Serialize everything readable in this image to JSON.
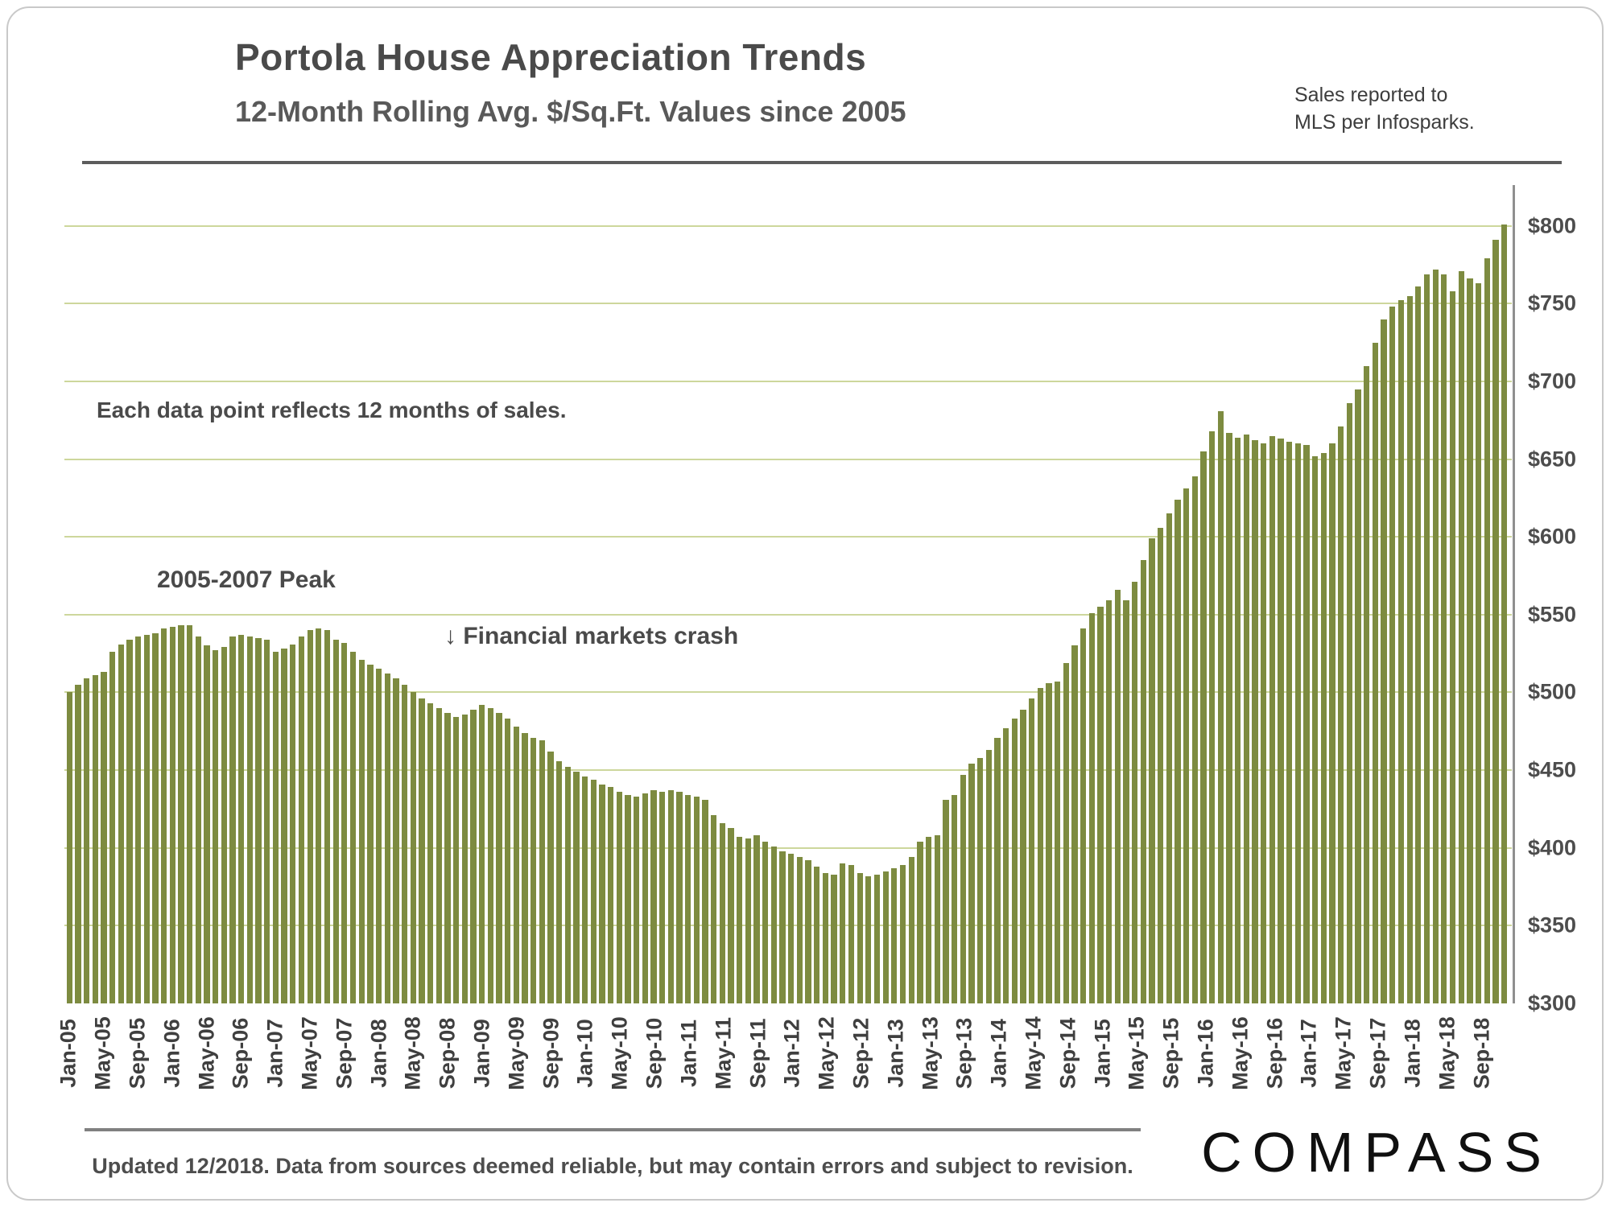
{
  "header": {
    "title": "Portola House Appreciation Trends",
    "subtitle": "12-Month Rolling Avg. $/Sq.Ft. Values since 2005",
    "source_note_line1": "Sales reported to",
    "source_note_line2": "MLS per Infosparks."
  },
  "annotations": {
    "data_point_note": "Each data point reflects 12 months of sales.",
    "peak_label": "2005-2007 Peak",
    "crash_label": "↓ Financial markets crash"
  },
  "footer": {
    "disclaimer": "Updated 12/2018. Data from sources deemed reliable, but may contain errors and subject to revision.",
    "logo": "COMPASS"
  },
  "chart_data": {
    "type": "bar",
    "title": "Portola House Appreciation Trends",
    "subtitle": "12-Month Rolling Avg. $/Sq.Ft. Values since 2005",
    "ylim": [
      300,
      820
    ],
    "gridlines": [
      350,
      400,
      450,
      500,
      550,
      600,
      650,
      700,
      750,
      800
    ],
    "ytick_prefix": "$",
    "x_label_every": 4,
    "bar_color": "#7d8b40",
    "gridline_color": "#cdd79c",
    "legend": "none",
    "x": [
      "Jan-05",
      "Feb-05",
      "Mar-05",
      "Apr-05",
      "May-05",
      "Jun-05",
      "Jul-05",
      "Aug-05",
      "Sep-05",
      "Oct-05",
      "Nov-05",
      "Dec-05",
      "Jan-06",
      "Feb-06",
      "Mar-06",
      "Apr-06",
      "May-06",
      "Jun-06",
      "Jul-06",
      "Aug-06",
      "Sep-06",
      "Oct-06",
      "Nov-06",
      "Dec-06",
      "Jan-07",
      "Feb-07",
      "Mar-07",
      "Apr-07",
      "May-07",
      "Jun-07",
      "Jul-07",
      "Aug-07",
      "Sep-07",
      "Oct-07",
      "Nov-07",
      "Dec-07",
      "Jan-08",
      "Feb-08",
      "Mar-08",
      "Apr-08",
      "May-08",
      "Jun-08",
      "Jul-08",
      "Aug-08",
      "Sep-08",
      "Oct-08",
      "Nov-08",
      "Dec-08",
      "Jan-09",
      "Feb-09",
      "Mar-09",
      "Apr-09",
      "May-09",
      "Jun-09",
      "Jul-09",
      "Aug-09",
      "Sep-09",
      "Oct-09",
      "Nov-09",
      "Dec-09",
      "Jan-10",
      "Feb-10",
      "Mar-10",
      "Apr-10",
      "May-10",
      "Jun-10",
      "Jul-10",
      "Aug-10",
      "Sep-10",
      "Oct-10",
      "Nov-10",
      "Dec-10",
      "Jan-11",
      "Feb-11",
      "Mar-11",
      "Apr-11",
      "May-11",
      "Jun-11",
      "Jul-11",
      "Aug-11",
      "Sep-11",
      "Oct-11",
      "Nov-11",
      "Dec-11",
      "Jan-12",
      "Feb-12",
      "Mar-12",
      "Apr-12",
      "May-12",
      "Jun-12",
      "Jul-12",
      "Aug-12",
      "Sep-12",
      "Oct-12",
      "Nov-12",
      "Dec-12",
      "Jan-13",
      "Feb-13",
      "Mar-13",
      "Apr-13",
      "May-13",
      "Jun-13",
      "Jul-13",
      "Aug-13",
      "Sep-13",
      "Oct-13",
      "Nov-13",
      "Dec-13",
      "Jan-14",
      "Feb-14",
      "Mar-14",
      "Apr-14",
      "May-14",
      "Jun-14",
      "Jul-14",
      "Aug-14",
      "Sep-14",
      "Oct-14",
      "Nov-14",
      "Dec-14",
      "Jan-15",
      "Feb-15",
      "Mar-15",
      "Apr-15",
      "May-15",
      "Jun-15",
      "Jul-15",
      "Aug-15",
      "Sep-15",
      "Oct-15",
      "Nov-15",
      "Dec-15",
      "Jan-16",
      "Feb-16",
      "Mar-16",
      "Apr-16",
      "May-16",
      "Jun-16",
      "Jul-16",
      "Aug-16",
      "Sep-16",
      "Oct-16",
      "Nov-16",
      "Dec-16",
      "Jan-17",
      "Feb-17",
      "Mar-17",
      "Apr-17",
      "May-17",
      "Jun-17",
      "Jul-17",
      "Aug-17",
      "Sep-17",
      "Oct-17",
      "Nov-17",
      "Dec-17",
      "Jan-18",
      "Feb-18",
      "Mar-18",
      "Apr-18",
      "May-18",
      "Jun-18",
      "Jul-18",
      "Aug-18",
      "Sep-18",
      "Oct-18",
      "Nov-18",
      "Dec-18"
    ],
    "values": [
      500,
      505,
      509,
      511,
      513,
      526,
      531,
      534,
      536,
      537,
      538,
      541,
      542,
      543,
      543,
      536,
      530,
      527,
      529,
      536,
      537,
      536,
      535,
      534,
      526,
      528,
      531,
      536,
      540,
      541,
      540,
      534,
      532,
      526,
      521,
      518,
      515,
      512,
      509,
      505,
      500,
      496,
      493,
      490,
      487,
      484,
      486,
      489,
      492,
      490,
      487,
      483,
      478,
      474,
      471,
      469,
      462,
      456,
      452,
      449,
      446,
      444,
      441,
      439,
      436,
      434,
      433,
      435,
      437,
      436,
      437,
      436,
      434,
      433,
      431,
      421,
      416,
      413,
      407,
      406,
      408,
      404,
      401,
      398,
      396,
      394,
      392,
      388,
      384,
      383,
      390,
      389,
      384,
      382,
      383,
      385,
      387,
      389,
      394,
      404,
      407,
      408,
      431,
      434,
      447,
      454,
      458,
      463,
      471,
      477,
      483,
      489,
      496,
      503,
      506,
      507,
      519,
      530,
      541,
      551,
      555,
      559,
      566,
      559,
      571,
      585,
      599,
      606,
      615,
      624,
      631,
      639,
      655,
      668,
      681,
      667,
      664,
      666,
      662,
      660,
      665,
      663,
      661,
      660,
      659,
      652,
      654,
      660,
      671,
      686,
      695,
      710,
      725,
      740,
      748,
      752,
      755,
      761,
      769,
      772,
      769,
      758,
      771,
      766,
      763,
      779,
      791,
      801
    ]
  }
}
